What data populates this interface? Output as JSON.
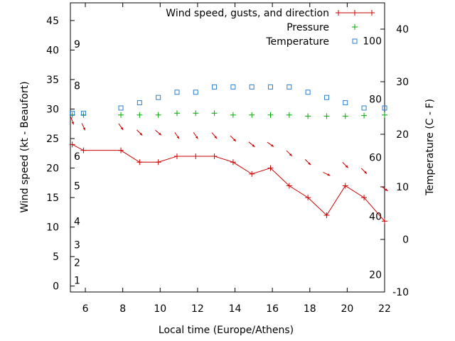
{
  "chart_data": {
    "type": "line",
    "xlabel": "Local time (Europe/Athens)",
    "ylabel": "Wind speed (kt - Beaufort)",
    "y2label": "Temperature (C - F)",
    "xlim": [
      5.2,
      22
    ],
    "ylim": [
      -1,
      48
    ],
    "y2lim": [
      -10,
      45
    ],
    "x_ticks": [
      6,
      8,
      10,
      12,
      14,
      16,
      18,
      20,
      22
    ],
    "y_ticks": [
      0,
      5,
      10,
      15,
      20,
      25,
      30,
      35,
      40,
      45
    ],
    "y2_ticks": [
      -10,
      0,
      10,
      20,
      30,
      40
    ],
    "beaufort_labels": [
      {
        "text": "1",
        "y": 1
      },
      {
        "text": "2",
        "y": 4
      },
      {
        "text": "3",
        "y": 7
      },
      {
        "text": "4",
        "y": 11
      },
      {
        "text": "5",
        "y": 17
      },
      {
        "text": "6",
        "y": 22
      },
      {
        "text": "8",
        "y": 34
      },
      {
        "text": "9",
        "y": 41
      }
    ],
    "fahrenheit_labels": [
      {
        "text": "20",
        "y2": -6.7
      },
      {
        "text": "40",
        "y2": 4.4
      },
      {
        "text": "60",
        "y2": 15.6
      },
      {
        "text": "80",
        "y2": 26.7
      },
      {
        "text": "100",
        "y2": 37.8
      }
    ],
    "legend_position": "top-right",
    "series": [
      {
        "name": "Wind speed, gusts, and direction",
        "color": "#cc0000",
        "axis": "y",
        "style": "line-plus",
        "x": [
          5.3,
          5.9,
          7.9,
          8.9,
          9.9,
          10.9,
          11.9,
          12.9,
          13.9,
          14.9,
          15.9,
          16.9,
          17.9,
          18.9,
          19.9,
          20.9,
          22.0
        ],
        "y": [
          24,
          23,
          23,
          21,
          21,
          22,
          22,
          22,
          21,
          19,
          20,
          17,
          15,
          12,
          17,
          15,
          11
        ]
      },
      {
        "name": "Pressure",
        "color": "#00aa00",
        "axis": "y",
        "style": "plus",
        "x": [
          5.3,
          5.9,
          7.9,
          8.9,
          9.9,
          10.9,
          11.9,
          12.9,
          13.9,
          14.9,
          15.9,
          16.9,
          17.9,
          18.9,
          19.9,
          20.9,
          22.0
        ],
        "y": [
          29,
          29,
          29,
          29,
          29,
          29.3,
          29.3,
          29.3,
          29,
          29,
          29,
          29,
          28.8,
          28.8,
          28.8,
          28.9,
          29
        ]
      },
      {
        "name": "Temperature",
        "color": "#2a7fd4",
        "axis": "y2",
        "style": "square",
        "x": [
          5.3,
          5.9,
          7.9,
          8.9,
          9.9,
          10.9,
          11.9,
          12.9,
          13.9,
          14.9,
          15.9,
          16.9,
          17.9,
          18.9,
          19.9,
          20.9,
          22.0
        ],
        "y": [
          24,
          24,
          25,
          26,
          27,
          28,
          28,
          29,
          29,
          29,
          29,
          29,
          28,
          27,
          26,
          25,
          25
        ]
      }
    ],
    "wind_direction_arrows": {
      "color": "#cc0000",
      "x": [
        5.3,
        5.9,
        7.9,
        8.9,
        9.9,
        10.9,
        11.9,
        12.9,
        13.9,
        14.9,
        15.9,
        16.9,
        17.9,
        18.9,
        19.9,
        20.9,
        22.0
      ],
      "y": [
        28,
        27,
        27,
        26,
        26,
        25.5,
        25.5,
        25.5,
        25,
        24,
        24,
        22.5,
        21,
        19,
        20.5,
        19.5,
        16.5
      ],
      "angle_deg": [
        200,
        205,
        215,
        225,
        230,
        215,
        215,
        220,
        225,
        230,
        235,
        225,
        225,
        245,
        225,
        225,
        235
      ]
    }
  }
}
